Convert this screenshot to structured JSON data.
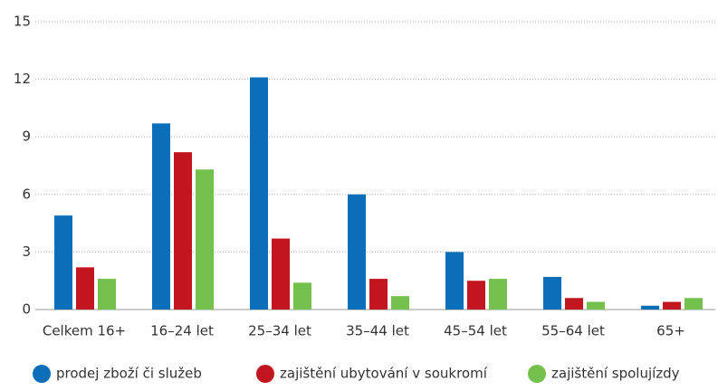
{
  "chart_data": {
    "type": "bar",
    "categories": [
      "Celkem 16+",
      "16–24 let",
      "25–34 let",
      "35–44 let",
      "45–54 let",
      "55–64 let",
      "65+"
    ],
    "series": [
      {
        "name": "prodej zboží či služeb",
        "color": "#0a6eb9",
        "values": [
          4.9,
          9.7,
          12.1,
          6.0,
          3.0,
          1.7,
          0.2
        ]
      },
      {
        "name": "zajištění ubytování v soukromí",
        "color": "#c1161f",
        "values": [
          2.2,
          8.2,
          3.7,
          1.6,
          1.5,
          0.6,
          0.4
        ]
      },
      {
        "name": "zajištění spolujízdy",
        "color": "#74c04c",
        "values": [
          1.6,
          7.3,
          1.4,
          0.7,
          1.6,
          0.4,
          0.6
        ]
      }
    ],
    "ylim": [
      0,
      15
    ],
    "yticks": [
      0,
      3,
      6,
      9,
      12,
      15
    ],
    "grid": true,
    "legend": "bottom"
  }
}
